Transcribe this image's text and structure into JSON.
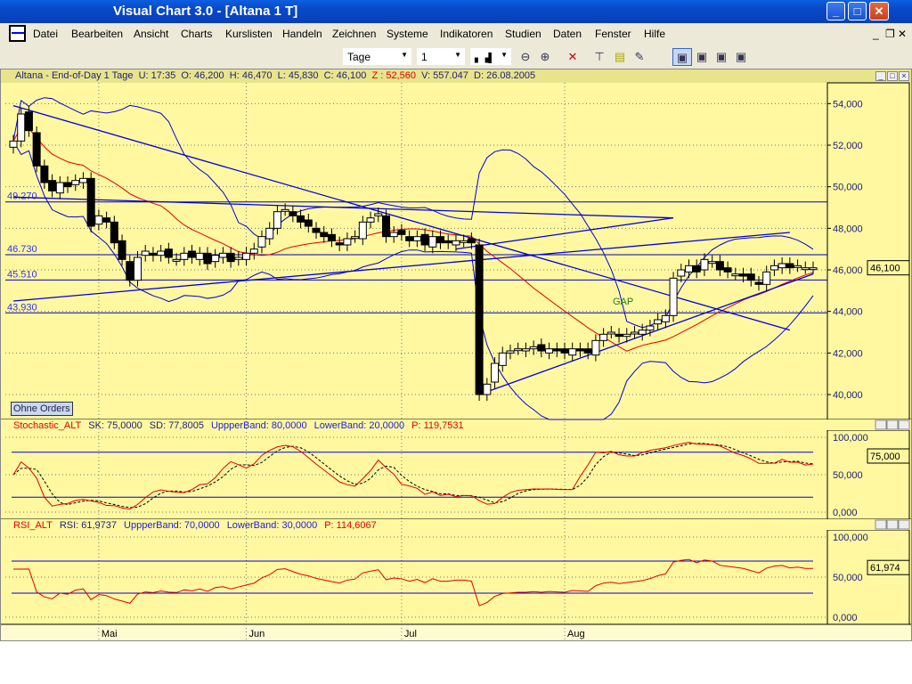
{
  "window": {
    "title": "Visual Chart  3.0 - [Altana 1 T]",
    "minimize": "_",
    "maximize": "□",
    "close": "✕"
  },
  "menu": {
    "items": [
      "Datei",
      "Bearbeiten",
      "Ansicht",
      "Charts",
      "Kurslisten",
      "Handeln",
      "Zeichnen",
      "Systeme",
      "Indikatoren",
      "Studien",
      "Daten",
      "Fenster",
      "Hilfe"
    ],
    "mdi_controls": [
      "_",
      "❐",
      "✕"
    ]
  },
  "toolbar": {
    "period": "Tage",
    "interval": "1",
    "icons": [
      "chart-type-icon",
      "zoom-out-icon",
      "zoom-in-icon",
      "crosshair-icon",
      "select-icon",
      "note-icon",
      "pen-color-icon",
      "layout-1-icon",
      "layout-2-icon",
      "layout-3-icon",
      "layout-4-icon"
    ]
  },
  "chart_header": {
    "symbol": "Altana - End-of-Day 1 Tage",
    "u": "U: 17:35",
    "o": "O: 46,200",
    "h": "H: 46,470",
    "l": "L: 45,830",
    "c": "C: 46,100",
    "z": "Z : 52,560",
    "v": "V: 557.047",
    "d": "D: 26.08.2005"
  },
  "orders_button": "Ohne Orders",
  "annotation": "GAP",
  "colors": {
    "background": "#fff8a0",
    "ma": "#e00000",
    "bands": "#0000e0",
    "candle": "#000000"
  },
  "chart_data": [
    {
      "type": "candlestick",
      "name": "Altana",
      "y_ticks": [
        "54,000",
        "52,000",
        "50,000",
        "48,000",
        "46,000",
        "44,000",
        "42,000",
        "40,000"
      ],
      "ylim": [
        38800,
        55000
      ],
      "last_value": "46,100",
      "x_labels": [
        {
          "label": "Mai",
          "index": 11
        },
        {
          "label": "Jun",
          "index": 30
        },
        {
          "label": "Jul",
          "index": 50
        },
        {
          "label": "Aug",
          "index": 71
        }
      ],
      "closes": [
        52.2,
        53.5,
        52.7,
        51.0,
        50.2,
        49.8,
        50.2,
        50.0,
        50.3,
        50.4,
        48.1,
        48.6,
        48.3,
        47.3,
        46.5,
        45.5,
        46.6,
        46.9,
        46.7,
        46.9,
        46.6,
        46.5,
        46.8,
        46.6,
        46.8,
        46.3,
        46.7,
        46.8,
        46.4,
        46.6,
        46.8,
        47.0,
        47.6,
        48.0,
        48.8,
        48.9,
        48.6,
        48.3,
        48.1,
        47.8,
        47.6,
        47.4,
        47.2,
        47.5,
        47.6,
        48.3,
        48.5,
        48.7,
        47.6,
        47.8,
        47.7,
        47.4,
        47.6,
        47.2,
        47.6,
        47.3,
        47.3,
        47.4,
        47.4,
        47.3,
        40.0,
        40.5,
        41.5,
        42.0,
        42.1,
        42.2,
        42.2,
        42.3,
        42.1,
        42.2,
        42.1,
        42.0,
        42.2,
        42.1,
        42.0,
        42.6,
        42.9,
        43.0,
        42.8,
        42.9,
        43.0,
        43.1,
        43.3,
        43.6,
        43.8,
        45.6,
        46.0,
        46.2,
        45.9,
        46.5,
        46.4,
        46.0,
        45.9,
        45.8,
        45.7,
        45.5,
        45.3,
        45.9,
        46.2,
        46.3,
        46.1,
        46.2,
        46.1,
        46.1
      ],
      "horizontal_lines": [
        {
          "label": "49.270",
          "value": 49270
        },
        {
          "label": "46.730",
          "value": 46730
        },
        {
          "label": "45.510",
          "value": 45510
        },
        {
          "label": "43.930",
          "value": 43930
        }
      ],
      "trendlines": [
        [
          [
            0,
            53900
          ],
          [
            100,
            43100
          ]
        ],
        [
          [
            0,
            49500
          ],
          [
            85,
            48500
          ]
        ],
        [
          [
            0,
            44500
          ],
          [
            100,
            47800
          ]
        ],
        [
          [
            57,
            47000
          ],
          [
            85,
            48500
          ]
        ],
        [
          [
            60,
            40000
          ],
          [
            103,
            45800
          ]
        ]
      ]
    },
    {
      "type": "line",
      "name": "Stochastic_ALT",
      "header": {
        "name": "Stochastic_ALT",
        "sk": "SK: 75,0000",
        "sd": "SD: 77,8005",
        "upper": "UppperBand: 80,0000",
        "lower": "LowerBand: 20,0000",
        "p": "P: 119,7531"
      },
      "y_ticks": [
        "100,000",
        "50,000",
        "0,000"
      ],
      "ylim": [
        0,
        100
      ],
      "bands": [
        80,
        20
      ],
      "last_value": "75,000"
    },
    {
      "type": "line",
      "name": "RSI_ALT",
      "header": {
        "name": "RSI_ALT",
        "rsi": "RSI: 61,9737",
        "upper": "UppperBand: 70,0000",
        "lower": "LowerBand: 30,0000",
        "p": "P: 114,6067"
      },
      "y_ticks": [
        "100,000",
        "50,000",
        "0,000"
      ],
      "ylim": [
        0,
        100
      ],
      "bands": [
        70,
        30
      ],
      "last_value": "61,974"
    }
  ]
}
